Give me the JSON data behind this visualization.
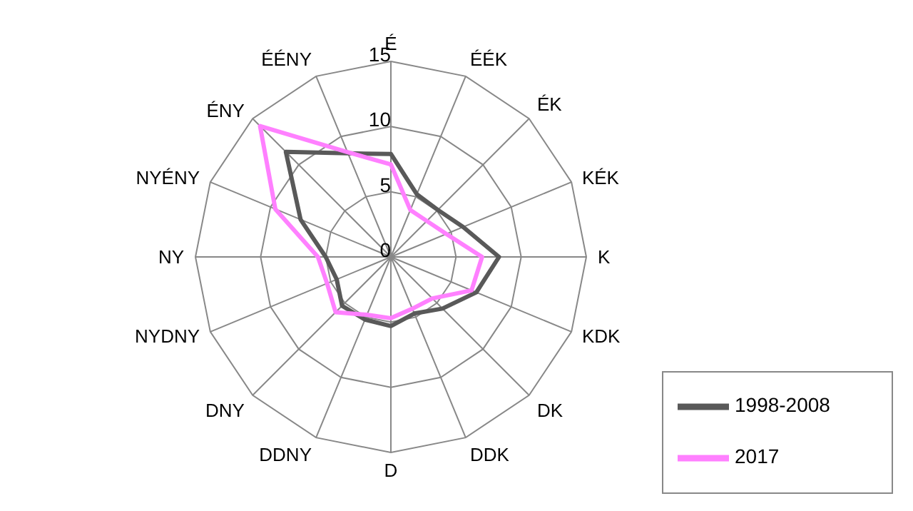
{
  "chart_data": {
    "type": "radar",
    "categories": [
      "É",
      "ÉÉK",
      "ÉK",
      "KÉK",
      "K",
      "KDK",
      "DK",
      "DDK",
      "D",
      "DDNY",
      "DNY",
      "NYDNY",
      "NY",
      "NYÉNY",
      "ÉNY",
      "ÉÉNY"
    ],
    "series": [
      {
        "name": "1998-2008",
        "color": "#595959",
        "values": [
          7.9,
          5.2,
          5.1,
          6.0,
          8.3,
          7.1,
          5.6,
          4.7,
          5.3,
          5.2,
          5.3,
          4.5,
          5.0,
          7.5,
          11.4,
          8.6
        ]
      },
      {
        "name": "2017",
        "color": "#ff80ff",
        "values": [
          7.1,
          3.9,
          3.9,
          4.6,
          7.0,
          6.7,
          4.5,
          4.3,
          4.7,
          4.8,
          6.0,
          5.3,
          5.6,
          9.6,
          14.2,
          8.7
        ]
      }
    ],
    "ylim": [
      0,
      15
    ],
    "yticks": [
      0,
      5,
      10,
      15
    ],
    "grid": true,
    "legend": "bottom right",
    "marker": "none"
  }
}
